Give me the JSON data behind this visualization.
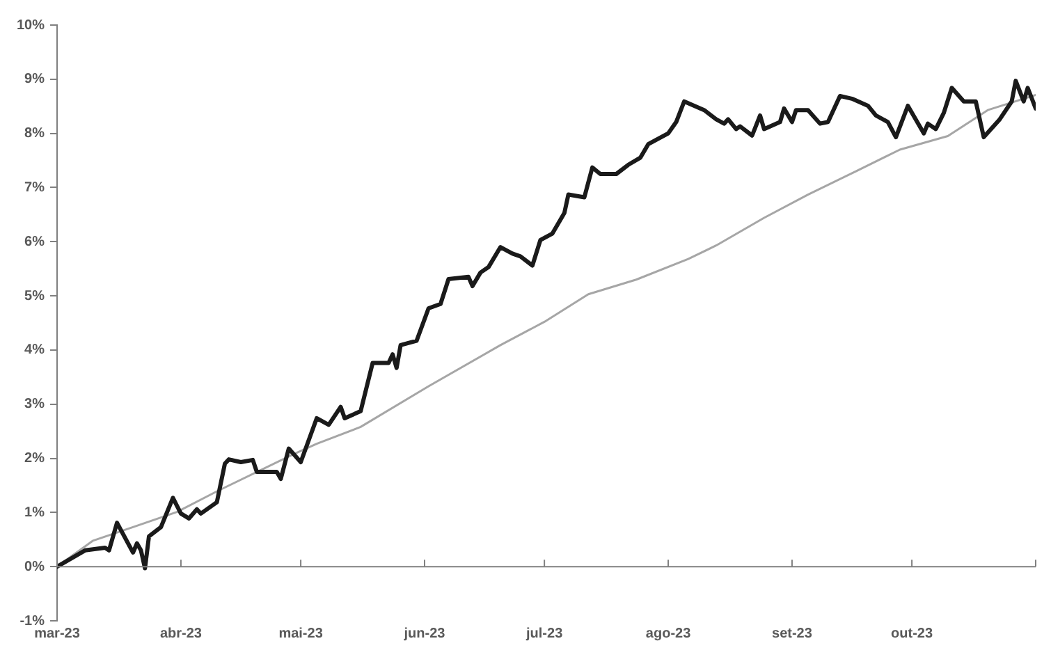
{
  "chart_data": {
    "type": "line",
    "ylim": [
      -1,
      10
    ],
    "yticks": [
      {
        "value": -1,
        "label": "-1%"
      },
      {
        "value": 0,
        "label": "0%"
      },
      {
        "value": 1,
        "label": "1%"
      },
      {
        "value": 2,
        "label": "2%"
      },
      {
        "value": 3,
        "label": "3%"
      },
      {
        "value": 4,
        "label": "4%"
      },
      {
        "value": 5,
        "label": "5%"
      },
      {
        "value": 6,
        "label": "6%"
      },
      {
        "value": 7,
        "label": "7%"
      },
      {
        "value": 8,
        "label": "8%"
      },
      {
        "value": 9,
        "label": "9%"
      },
      {
        "value": 10,
        "label": "10%"
      }
    ],
    "xlim": [
      "2023-03-01",
      "2023-11-01"
    ],
    "xticks": [
      {
        "value": "2023-03-01",
        "label": "mar-23"
      },
      {
        "value": "2023-04-01",
        "label": "abr-23"
      },
      {
        "value": "2023-05-01",
        "label": "mai-23"
      },
      {
        "value": "2023-06-01",
        "label": "jun-23"
      },
      {
        "value": "2023-07-01",
        "label": "jul-23"
      },
      {
        "value": "2023-08-01",
        "label": "ago-23"
      },
      {
        "value": "2023-09-01",
        "label": "set-23"
      },
      {
        "value": "2023-10-01",
        "label": "out-23"
      },
      {
        "value": "2023-11-01",
        "label": null
      }
    ],
    "grid": false,
    "legend": false,
    "marker": "none",
    "line_style": "solid",
    "ref_lines": [
      {
        "axis": "y",
        "value": 0,
        "color": "#808080"
      }
    ],
    "series": [
      {
        "color": "#1a1a1a",
        "x": [
          "2023-03-01",
          "2023-03-08",
          "2023-03-13",
          "2023-03-14",
          "2023-03-16",
          "2023-03-20",
          "2023-03-21",
          "2023-03-22",
          "2023-03-23",
          "2023-03-24",
          "2023-03-27",
          "2023-03-30",
          "2023-04-01",
          "2023-04-03",
          "2023-04-05",
          "2023-04-06",
          "2023-04-10",
          "2023-04-12",
          "2023-04-13",
          "2023-04-16",
          "2023-04-19",
          "2023-04-20",
          "2023-04-25",
          "2023-04-26",
          "2023-04-28",
          "2023-05-01",
          "2023-05-05",
          "2023-05-08",
          "2023-05-11",
          "2023-05-12",
          "2023-05-16",
          "2023-05-19",
          "2023-05-23",
          "2023-05-24",
          "2023-05-25",
          "2023-05-26",
          "2023-05-30",
          "2023-06-02",
          "2023-06-05",
          "2023-06-07",
          "2023-06-12",
          "2023-06-13",
          "2023-06-15",
          "2023-06-17",
          "2023-06-20",
          "2023-06-23",
          "2023-06-25",
          "2023-06-28",
          "2023-06-30",
          "2023-07-03",
          "2023-07-06",
          "2023-07-07",
          "2023-07-11",
          "2023-07-13",
          "2023-07-15",
          "2023-07-19",
          "2023-07-22",
          "2023-07-25",
          "2023-07-27",
          "2023-07-29",
          "2023-08-01",
          "2023-08-03",
          "2023-08-05",
          "2023-08-10",
          "2023-08-13",
          "2023-08-15",
          "2023-08-16",
          "2023-08-18",
          "2023-08-19",
          "2023-08-22",
          "2023-08-24",
          "2023-08-25",
          "2023-08-29",
          "2023-08-30",
          "2023-09-01",
          "2023-09-02",
          "2023-09-05",
          "2023-09-08",
          "2023-09-10",
          "2023-09-13",
          "2023-09-16",
          "2023-09-20",
          "2023-09-22",
          "2023-09-25",
          "2023-09-27",
          "2023-09-30",
          "2023-10-04",
          "2023-10-05",
          "2023-10-07",
          "2023-10-09",
          "2023-10-11",
          "2023-10-14",
          "2023-10-17",
          "2023-10-19",
          "2023-10-23",
          "2023-10-26",
          "2023-10-27",
          "2023-10-29",
          "2023-10-30",
          "2023-11-01"
        ],
        "values": [
          0,
          0.3,
          0.35,
          0.3,
          0.81,
          0.26,
          0.43,
          0.3,
          -0.03,
          0.56,
          0.73,
          1.27,
          0.98,
          0.89,
          1.06,
          0.98,
          1.19,
          1.9,
          1.98,
          1.93,
          1.97,
          1.75,
          1.75,
          1.62,
          2.18,
          1.93,
          2.74,
          2.62,
          2.95,
          2.74,
          2.87,
          3.76,
          3.76,
          3.92,
          3.67,
          4.09,
          4.17,
          4.77,
          4.85,
          5.31,
          5.35,
          5.18,
          5.43,
          5.53,
          5.9,
          5.78,
          5.73,
          5.56,
          6.03,
          6.15,
          6.53,
          6.87,
          6.82,
          7.37,
          7.25,
          7.25,
          7.42,
          7.55,
          7.8,
          7.88,
          8.0,
          8.21,
          8.59,
          8.43,
          8.26,
          8.18,
          8.26,
          8.08,
          8.13,
          7.96,
          8.33,
          8.08,
          8.21,
          8.46,
          8.21,
          8.43,
          8.43,
          8.18,
          8.21,
          8.69,
          8.64,
          8.51,
          8.33,
          8.21,
          7.93,
          8.51,
          8.0,
          8.18,
          8.08,
          8.38,
          8.84,
          8.59,
          8.59,
          7.93,
          8.26,
          8.59,
          8.97,
          8.59,
          8.84,
          8.46
        ]
      },
      {
        "color": "#a6a6a6",
        "x": [
          "2023-03-01",
          "2023-03-10",
          "2023-03-20",
          "2023-03-31",
          "2023-04-10",
          "2023-04-29",
          "2023-05-05",
          "2023-05-16",
          "2023-06-02",
          "2023-06-20",
          "2023-07-01",
          "2023-07-12",
          "2023-07-24",
          "2023-08-06",
          "2023-08-13",
          "2023-08-25",
          "2023-09-05",
          "2023-09-17",
          "2023-09-28",
          "2023-10-10",
          "2023-10-20",
          "2023-11-01"
        ],
        "values": [
          0,
          0.48,
          0.73,
          1.01,
          1.39,
          2.07,
          2.27,
          2.58,
          3.33,
          4.09,
          4.52,
          5.03,
          5.3,
          5.68,
          5.93,
          6.44,
          6.87,
          7.3,
          7.7,
          7.95,
          8.43,
          8.71
        ]
      }
    ]
  }
}
